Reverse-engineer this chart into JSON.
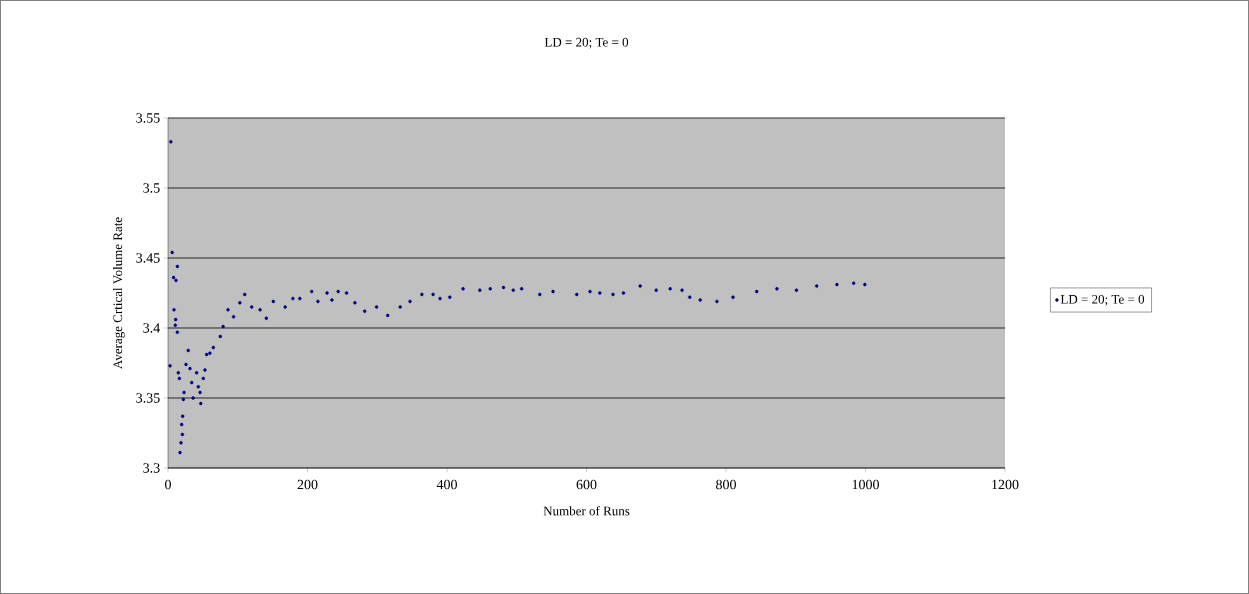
{
  "chart_data": {
    "type": "scatter",
    "title": "LD = 20; Te = 0",
    "xlabel": "Number of Runs",
    "ylabel": "Average Crtical Volume Rate",
    "xlim": [
      0,
      1200
    ],
    "xticks": [
      0,
      200,
      400,
      600,
      800,
      1000,
      1200
    ],
    "ylim": [
      3.3,
      3.55
    ],
    "yticks": [
      3.3,
      3.35,
      3.4,
      3.45,
      3.5,
      3.55
    ],
    "grid": "y",
    "legend": "right",
    "marker": "circle",
    "series": [
      {
        "name": "LD = 20; Te = 0",
        "color": "#000080",
        "x": [
          3,
          4,
          6,
          8,
          8.6,
          10.5,
          11,
          11.5,
          13.4,
          13.5,
          14.8,
          16.3,
          17.2,
          18.6,
          19.6,
          20.6,
          21,
          22,
          23,
          25.8,
          29,
          31.5,
          34,
          36,
          41,
          43.5,
          46,
          47,
          50.6,
          53,
          55.4,
          60,
          65,
          75,
          79,
          86,
          94,
          103,
          110,
          120,
          132,
          141,
          151,
          168,
          179,
          189,
          206,
          215,
          228,
          235,
          244,
          256,
          268,
          282,
          299,
          315,
          333,
          347,
          364,
          380,
          390,
          404,
          423,
          447,
          462,
          481,
          495,
          507,
          533,
          552,
          586,
          605,
          619,
          638,
          653,
          677,
          700,
          720,
          737,
          748,
          763,
          787,
          810,
          844,
          873,
          901,
          930,
          959,
          983,
          999
        ],
        "values": [
          3.373,
          3.533,
          3.454,
          3.436,
          3.413,
          3.402,
          3.406,
          3.434,
          3.397,
          3.444,
          3.368,
          3.364,
          3.311,
          3.318,
          3.331,
          3.324,
          3.337,
          3.349,
          3.354,
          3.374,
          3.384,
          3.371,
          3.361,
          3.35,
          3.368,
          3.358,
          3.354,
          3.346,
          3.364,
          3.37,
          3.381,
          3.382,
          3.386,
          3.394,
          3.401,
          3.413,
          3.408,
          3.418,
          3.424,
          3.415,
          3.413,
          3.407,
          3.419,
          3.415,
          3.421,
          3.421,
          3.426,
          3.419,
          3.425,
          3.42,
          3.426,
          3.425,
          3.418,
          3.412,
          3.415,
          3.409,
          3.415,
          3.419,
          3.424,
          3.424,
          3.421,
          3.422,
          3.428,
          3.427,
          3.428,
          3.429,
          3.427,
          3.428,
          3.424,
          3.426,
          3.424,
          3.426,
          3.425,
          3.424,
          3.425,
          3.43,
          3.427,
          3.428,
          3.427,
          3.422,
          3.42,
          3.419,
          3.422,
          3.426,
          3.428,
          3.427,
          3.43,
          3.431,
          3.432,
          3.431
        ]
      }
    ]
  }
}
